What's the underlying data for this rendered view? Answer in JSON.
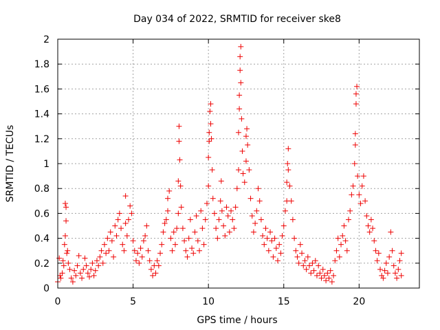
{
  "chart_data": {
    "type": "scatter",
    "title": "Day 034 of 2022, SRMTID for receiver ske8",
    "xlabel": "GPS time / hours",
    "ylabel": "SRMTID / TECUs",
    "xlim": [
      0,
      24
    ],
    "ylim": [
      0,
      2
    ],
    "x_ticks": [
      0,
      5,
      10,
      15,
      20
    ],
    "x_tick_labels": [
      "0",
      "5",
      "10",
      "15",
      "20"
    ],
    "y_ticks": [
      0,
      0.2,
      0.4,
      0.6,
      0.8,
      1,
      1.2,
      1.4,
      1.6,
      1.8,
      2
    ],
    "y_tick_labels": [
      "0",
      "0.2",
      "0.4",
      "0.6",
      "0.8",
      "1",
      "1.2",
      "1.4",
      "1.6",
      "1.8",
      "2"
    ],
    "grid": true,
    "marker": "+",
    "series": [
      {
        "name": "SRMTID",
        "color": "#ee0000",
        "points": [
          [
            0.0,
            0.05
          ],
          [
            0.1,
            0.24
          ],
          [
            0.15,
            0.1
          ],
          [
            0.2,
            0.08
          ],
          [
            0.3,
            0.12
          ],
          [
            0.35,
            0.22
          ],
          [
            0.4,
            0.18
          ],
          [
            0.45,
            0.35
          ],
          [
            0.5,
            0.42
          ],
          [
            0.5,
            0.68
          ],
          [
            0.55,
            0.65
          ],
          [
            0.55,
            0.54
          ],
          [
            0.6,
            0.28
          ],
          [
            0.65,
            0.3
          ],
          [
            0.7,
            0.2
          ],
          [
            0.8,
            0.15
          ],
          [
            0.9,
            0.08
          ],
          [
            1.0,
            0.05
          ],
          [
            1.1,
            0.14
          ],
          [
            1.2,
            0.1
          ],
          [
            1.3,
            0.18
          ],
          [
            1.4,
            0.26
          ],
          [
            1.5,
            0.12
          ],
          [
            1.6,
            0.08
          ],
          [
            1.7,
            0.15
          ],
          [
            1.8,
            0.24
          ],
          [
            1.9,
            0.18
          ],
          [
            2.0,
            0.12
          ],
          [
            2.1,
            0.09
          ],
          [
            2.2,
            0.15
          ],
          [
            2.3,
            0.2
          ],
          [
            2.4,
            0.1
          ],
          [
            2.5,
            0.14
          ],
          [
            2.6,
            0.22
          ],
          [
            2.7,
            0.18
          ],
          [
            2.8,
            0.25
          ],
          [
            2.9,
            0.3
          ],
          [
            3.0,
            0.2
          ],
          [
            3.1,
            0.35
          ],
          [
            3.2,
            0.28
          ],
          [
            3.3,
            0.4
          ],
          [
            3.4,
            0.3
          ],
          [
            3.5,
            0.45
          ],
          [
            3.6,
            0.38
          ],
          [
            3.7,
            0.25
          ],
          [
            3.8,
            0.5
          ],
          [
            3.9,
            0.42
          ],
          [
            4.0,
            0.55
          ],
          [
            4.1,
            0.6
          ],
          [
            4.2,
            0.48
          ],
          [
            4.3,
            0.35
          ],
          [
            4.4,
            0.3
          ],
          [
            4.5,
            0.52
          ],
          [
            4.6,
            0.42
          ],
          [
            4.7,
            0.55
          ],
          [
            4.8,
            0.66
          ],
          [
            4.9,
            0.6
          ],
          [
            5.0,
            0.38
          ],
          [
            4.5,
            0.74
          ],
          [
            5.1,
            0.3
          ],
          [
            5.2,
            0.22
          ],
          [
            5.3,
            0.28
          ],
          [
            5.4,
            0.2
          ],
          [
            5.5,
            0.32
          ],
          [
            5.6,
            0.25
          ],
          [
            5.7,
            0.38
          ],
          [
            5.8,
            0.42
          ],
          [
            5.9,
            0.5
          ],
          [
            6.0,
            0.3
          ],
          [
            6.1,
            0.22
          ],
          [
            6.2,
            0.15
          ],
          [
            6.3,
            0.1
          ],
          [
            6.4,
            0.18
          ],
          [
            6.5,
            0.12
          ],
          [
            6.6,
            0.22
          ],
          [
            6.7,
            0.18
          ],
          [
            6.8,
            0.28
          ],
          [
            6.9,
            0.35
          ],
          [
            7.0,
            0.45
          ],
          [
            7.1,
            0.52
          ],
          [
            7.2,
            0.55
          ],
          [
            7.3,
            0.62
          ],
          [
            7.3,
            0.72
          ],
          [
            7.4,
            0.78
          ],
          [
            7.5,
            0.4
          ],
          [
            7.6,
            0.3
          ],
          [
            7.7,
            0.45
          ],
          [
            7.8,
            0.35
          ],
          [
            7.9,
            0.48
          ],
          [
            8.0,
            0.6
          ],
          [
            8.0,
            0.86
          ],
          [
            8.05,
            1.3
          ],
          [
            8.05,
            1.18
          ],
          [
            8.1,
            1.03
          ],
          [
            8.15,
            0.82
          ],
          [
            8.2,
            0.65
          ],
          [
            8.3,
            0.48
          ],
          [
            8.4,
            0.38
          ],
          [
            8.5,
            0.3
          ],
          [
            8.6,
            0.25
          ],
          [
            8.7,
            0.4
          ],
          [
            8.8,
            0.55
          ],
          [
            8.9,
            0.32
          ],
          [
            9.0,
            0.28
          ],
          [
            9.1,
            0.45
          ],
          [
            9.2,
            0.58
          ],
          [
            9.3,
            0.38
          ],
          [
            9.4,
            0.3
          ],
          [
            9.5,
            0.62
          ],
          [
            9.6,
            0.48
          ],
          [
            9.7,
            0.35
          ],
          [
            9.8,
            0.55
          ],
          [
            9.9,
            0.68
          ],
          [
            10.0,
            0.82
          ],
          [
            10.0,
            1.05
          ],
          [
            10.05,
            1.25
          ],
          [
            10.05,
            1.18
          ],
          [
            10.1,
            1.42
          ],
          [
            10.15,
            1.48
          ],
          [
            10.15,
            1.32
          ],
          [
            10.2,
            1.2
          ],
          [
            10.25,
            0.95
          ],
          [
            10.3,
            0.72
          ],
          [
            10.4,
            0.6
          ],
          [
            10.5,
            0.48
          ],
          [
            10.6,
            0.4
          ],
          [
            10.7,
            0.55
          ],
          [
            10.8,
            0.7
          ],
          [
            10.85,
            0.86
          ],
          [
            10.9,
            0.62
          ],
          [
            11.0,
            0.5
          ],
          [
            11.1,
            0.42
          ],
          [
            11.2,
            0.65
          ],
          [
            11.3,
            0.58
          ],
          [
            11.4,
            0.45
          ],
          [
            11.5,
            0.62
          ],
          [
            11.6,
            0.55
          ],
          [
            11.7,
            0.48
          ],
          [
            11.8,
            0.65
          ],
          [
            11.9,
            0.8
          ],
          [
            12.0,
            0.95
          ],
          [
            12.0,
            1.25
          ],
          [
            12.05,
            1.44
          ],
          [
            12.05,
            1.55
          ],
          [
            12.1,
            1.75
          ],
          [
            12.1,
            1.86
          ],
          [
            12.15,
            1.94
          ],
          [
            12.15,
            1.65
          ],
          [
            12.2,
            1.36
          ],
          [
            12.25,
            1.1
          ],
          [
            12.3,
            0.92
          ],
          [
            12.4,
            0.85
          ],
          [
            12.5,
            1.02
          ],
          [
            12.5,
            1.22
          ],
          [
            12.55,
            1.28
          ],
          [
            12.6,
            1.15
          ],
          [
            12.7,
            0.95
          ],
          [
            12.8,
            0.72
          ],
          [
            12.9,
            0.58
          ],
          [
            13.0,
            0.45
          ],
          [
            13.1,
            0.52
          ],
          [
            13.2,
            0.62
          ],
          [
            13.3,
            0.8
          ],
          [
            13.4,
            0.7
          ],
          [
            13.5,
            0.55
          ],
          [
            13.6,
            0.42
          ],
          [
            13.7,
            0.35
          ],
          [
            13.8,
            0.48
          ],
          [
            13.9,
            0.4
          ],
          [
            14.0,
            0.3
          ],
          [
            14.1,
            0.45
          ],
          [
            14.2,
            0.38
          ],
          [
            14.3,
            0.25
          ],
          [
            14.4,
            0.4
          ],
          [
            14.5,
            0.32
          ],
          [
            14.6,
            0.22
          ],
          [
            14.7,
            0.35
          ],
          [
            14.8,
            0.28
          ],
          [
            14.9,
            0.42
          ],
          [
            15.0,
            0.5
          ],
          [
            15.1,
            0.62
          ],
          [
            15.2,
            0.7
          ],
          [
            15.2,
            0.85
          ],
          [
            15.25,
            1.0
          ],
          [
            15.3,
            1.12
          ],
          [
            15.3,
            0.95
          ],
          [
            15.4,
            0.82
          ],
          [
            15.5,
            0.7
          ],
          [
            15.6,
            0.55
          ],
          [
            15.7,
            0.4
          ],
          [
            15.8,
            0.3
          ],
          [
            15.9,
            0.25
          ],
          [
            16.0,
            0.2
          ],
          [
            16.1,
            0.35
          ],
          [
            16.2,
            0.28
          ],
          [
            16.3,
            0.18
          ],
          [
            16.4,
            0.22
          ],
          [
            16.5,
            0.15
          ],
          [
            16.6,
            0.25
          ],
          [
            16.7,
            0.18
          ],
          [
            16.8,
            0.12
          ],
          [
            16.9,
            0.2
          ],
          [
            17.0,
            0.14
          ],
          [
            17.1,
            0.22
          ],
          [
            17.2,
            0.1
          ],
          [
            17.3,
            0.18
          ],
          [
            17.4,
            0.12
          ],
          [
            17.5,
            0.08
          ],
          [
            17.6,
            0.15
          ],
          [
            17.7,
            0.1
          ],
          [
            17.8,
            0.06
          ],
          [
            17.9,
            0.12
          ],
          [
            18.0,
            0.08
          ],
          [
            18.1,
            0.14
          ],
          [
            18.2,
            0.05
          ],
          [
            18.3,
            0.1
          ],
          [
            18.4,
            0.22
          ],
          [
            18.5,
            0.3
          ],
          [
            18.6,
            0.4
          ],
          [
            18.7,
            0.25
          ],
          [
            18.8,
            0.35
          ],
          [
            18.9,
            0.42
          ],
          [
            19.0,
            0.5
          ],
          [
            19.1,
            0.38
          ],
          [
            19.2,
            0.3
          ],
          [
            19.3,
            0.55
          ],
          [
            19.4,
            0.62
          ],
          [
            19.5,
            0.75
          ],
          [
            19.6,
            0.82
          ],
          [
            19.7,
            1.0
          ],
          [
            19.75,
            1.15
          ],
          [
            19.75,
            1.24
          ],
          [
            19.8,
            1.48
          ],
          [
            19.8,
            1.56
          ],
          [
            19.85,
            1.62
          ],
          [
            19.9,
            0.9
          ],
          [
            20.0,
            0.75
          ],
          [
            20.1,
            0.68
          ],
          [
            20.2,
            0.82
          ],
          [
            20.3,
            0.9
          ],
          [
            20.4,
            0.7
          ],
          [
            20.5,
            0.58
          ],
          [
            20.6,
            0.5
          ],
          [
            20.7,
            0.45
          ],
          [
            20.8,
            0.55
          ],
          [
            20.9,
            0.48
          ],
          [
            21.0,
            0.38
          ],
          [
            21.1,
            0.3
          ],
          [
            21.2,
            0.22
          ],
          [
            21.3,
            0.28
          ],
          [
            21.4,
            0.15
          ],
          [
            21.5,
            0.1
          ],
          [
            21.6,
            0.08
          ],
          [
            21.7,
            0.14
          ],
          [
            21.8,
            0.2
          ],
          [
            21.9,
            0.12
          ],
          [
            22.0,
            0.25
          ],
          [
            22.1,
            0.45
          ],
          [
            22.2,
            0.3
          ],
          [
            22.3,
            0.18
          ],
          [
            22.4,
            0.12
          ],
          [
            22.5,
            0.08
          ],
          [
            22.6,
            0.15
          ],
          [
            22.7,
            0.22
          ],
          [
            22.8,
            0.1
          ],
          [
            22.8,
            0.28
          ]
        ]
      }
    ]
  }
}
